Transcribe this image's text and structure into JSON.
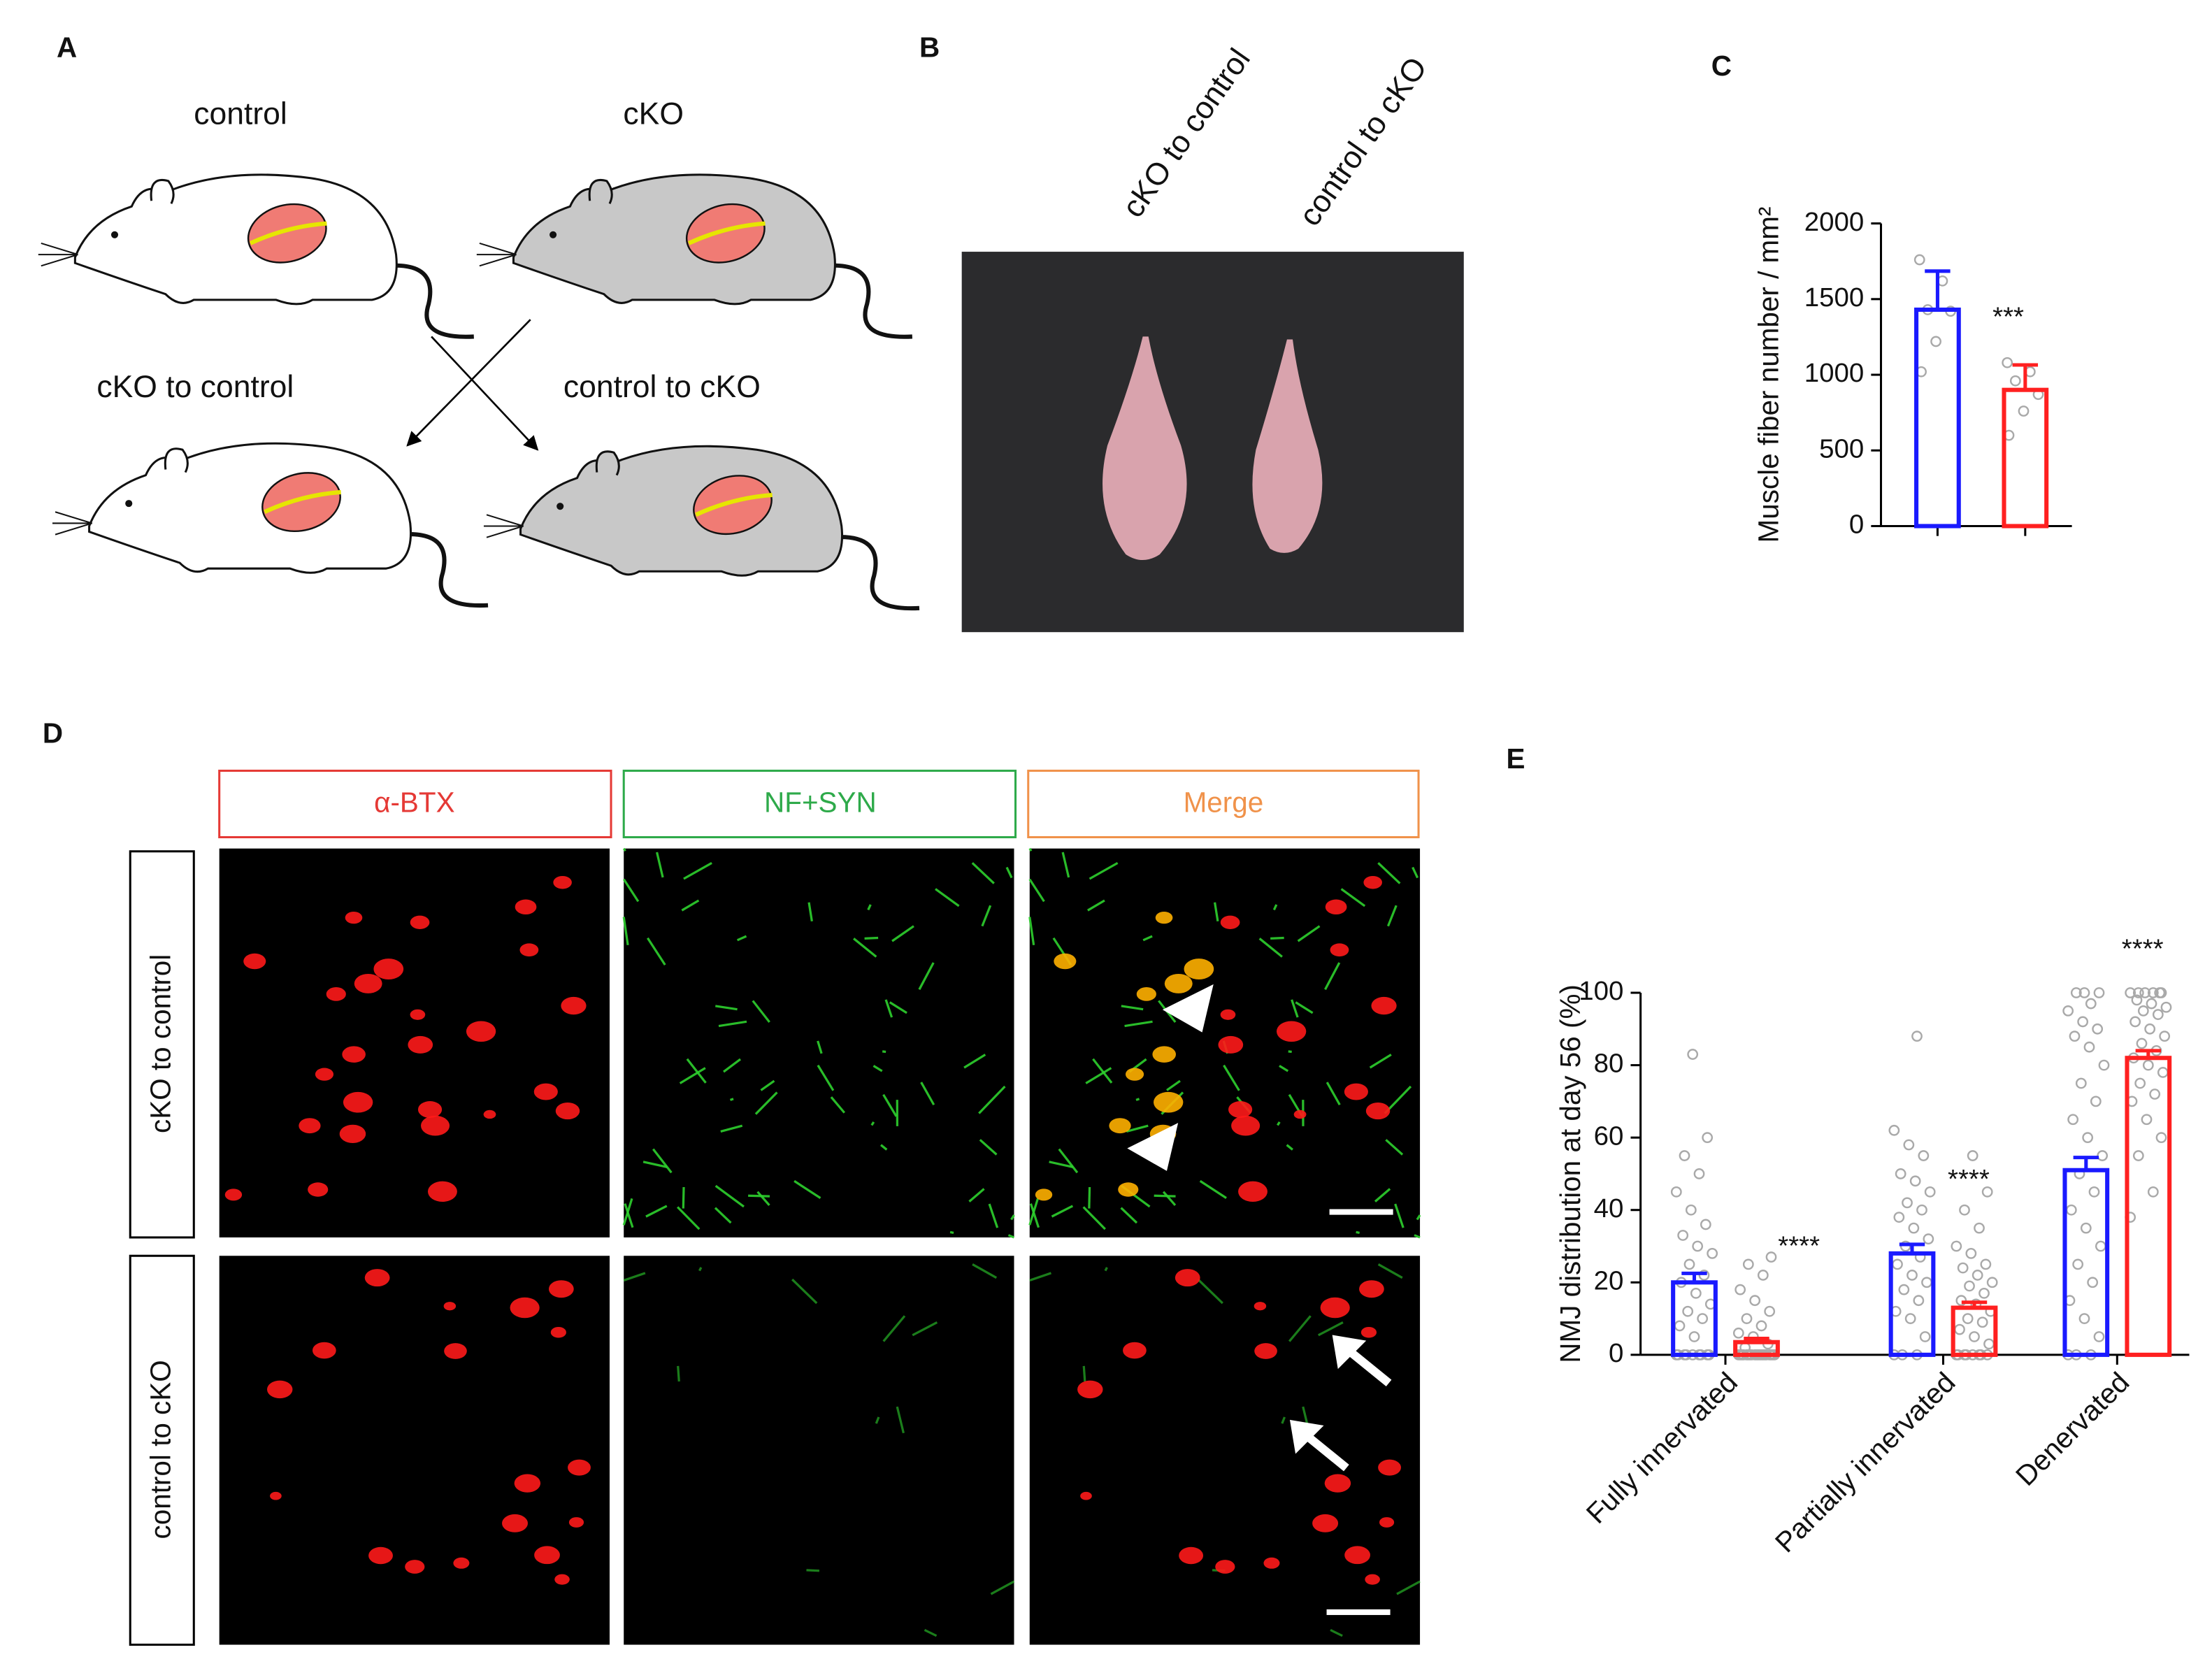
{
  "figure": {
    "A": {
      "label": "A",
      "top_left": "control",
      "top_right": "cKO",
      "bottom_left": "cKO to control",
      "bottom_right": "control to cKO"
    },
    "B": {
      "label": "B",
      "samples": [
        "cKO to control",
        "control to cKO"
      ]
    },
    "D": {
      "label": "D",
      "columns": [
        "α-BTX",
        "NF+SYN",
        "Merge"
      ],
      "rows": [
        "cKO to control",
        "control to cKO"
      ]
    }
  },
  "chart_data": [
    {
      "type": "bar",
      "label": "C",
      "ylabel": "Muscle fiber number / mm²",
      "categories": [
        null,
        null
      ],
      "values": [
        1430,
        900
      ],
      "errors": [
        255,
        165
      ],
      "colors": [
        "#1a1aff",
        "#ff2020"
      ],
      "points": [
        [
          1760,
          1620,
          1430,
          1420,
          1220,
          1020
        ],
        [
          1080,
          1020,
          960,
          870,
          760,
          600
        ]
      ],
      "annotation": "***",
      "ylim": [
        0,
        2000
      ],
      "yticks": [
        0,
        500,
        1000,
        1500,
        2000
      ]
    },
    {
      "type": "bar",
      "label": "E",
      "ylabel": "NMJ distribution at day 56 (%)",
      "categories": [
        "Fully innervated",
        "Partially innervated",
        "Denervated"
      ],
      "series": [
        {
          "color": "#1a1aff",
          "values": [
            20,
            28,
            51
          ],
          "errors": [
            2.5,
            2.5,
            3.5
          ],
          "points": [
            [
              0,
              0,
              0,
              0,
              0,
              0,
              0,
              0,
              0,
              5,
              8,
              10,
              12,
              14,
              17,
              20,
              22,
              25,
              28,
              30,
              33,
              36,
              40,
              45,
              50,
              55,
              60,
              83
            ],
            [
              0,
              0,
              0,
              5,
              10,
              12,
              15,
              18,
              20,
              22,
              25,
              27,
              30,
              32,
              35,
              38,
              40,
              42,
              45,
              48,
              50,
              55,
              58,
              62,
              88
            ],
            [
              0,
              0,
              0,
              5,
              10,
              15,
              20,
              25,
              30,
              35,
              40,
              45,
              50,
              55,
              60,
              65,
              70,
              75,
              80,
              85,
              88,
              90,
              92,
              95,
              97,
              100,
              100,
              100
            ]
          ]
        },
        {
          "color": "#ff2020",
          "values": [
            3.5,
            13,
            82
          ],
          "errors": [
            1,
            1.5,
            2
          ],
          "points": [
            [
              0,
              0,
              0,
              0,
              0,
              0,
              0,
              0,
              0,
              0,
              0,
              0,
              0,
              0,
              0,
              0,
              0,
              0,
              0,
              0,
              2,
              3,
              5,
              6,
              8,
              10,
              12,
              15,
              18,
              22,
              25,
              27
            ],
            [
              0,
              0,
              0,
              0,
              0,
              0,
              0,
              0,
              3,
              5,
              7,
              9,
              10,
              12,
              14,
              15,
              17,
              19,
              20,
              22,
              24,
              25,
              28,
              30,
              35,
              40,
              45,
              55
            ],
            [
              38,
              45,
              55,
              60,
              65,
              70,
              72,
              75,
              78,
              80,
              82,
              84,
              86,
              88,
              90,
              92,
              94,
              95,
              96,
              97,
              98,
              100,
              100,
              100,
              100,
              100,
              100
            ]
          ]
        }
      ],
      "annotations": [
        "****",
        "****",
        "****"
      ],
      "ylim": [
        0,
        100
      ],
      "yticks": [
        0,
        20,
        40,
        60,
        80,
        100
      ]
    }
  ]
}
